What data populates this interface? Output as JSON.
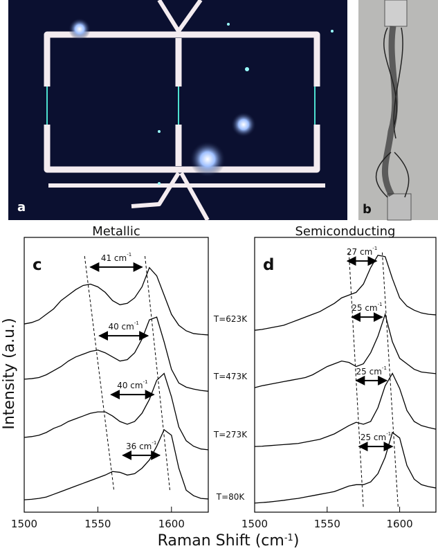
{
  "images": [
    {
      "label": "a"
    },
    {
      "label": "b"
    }
  ],
  "chart_data": [
    {
      "type": "line",
      "title": "Metallic",
      "panel_label": "c",
      "ylabel": "Intensity (a.u.)",
      "xlabel": {
        "text": "Raman Shift (cm",
        "sup": "-1",
        "tail": ")"
      },
      "xlim": [
        1500,
        1625
      ],
      "xticks": [
        1500,
        1550,
        1600
      ],
      "ylim": [
        0,
        100
      ],
      "x": [
        1500,
        1505,
        1510,
        1515,
        1520,
        1525,
        1530,
        1535,
        1540,
        1545,
        1550,
        1555,
        1560,
        1565,
        1570,
        1575,
        1580,
        1585,
        1590,
        1595,
        1600,
        1605,
        1610,
        1615,
        1620,
        1625
      ],
      "series": [
        {
          "name": "T=623K",
          "color": "#000000",
          "values": [
            68.5,
            69,
            70,
            72,
            74,
            77,
            79,
            81,
            82.5,
            83,
            82,
            80,
            77,
            75.5,
            76,
            78,
            82,
            89,
            86,
            79,
            72,
            68,
            66,
            65,
            64.7,
            64.5
          ]
        },
        {
          "name": "T=473K",
          "color": "#000000",
          "values": [
            48.4,
            48.6,
            49,
            50,
            51.5,
            53,
            55,
            56.5,
            57.5,
            58.5,
            59,
            58,
            56.5,
            55,
            55.5,
            58,
            63,
            70,
            71,
            62,
            52,
            47,
            45.5,
            44.8,
            44.3,
            44
          ]
        },
        {
          "name": "T=273K",
          "color": "#000000",
          "values": [
            27.2,
            27.5,
            28,
            29,
            30.5,
            31.5,
            33,
            34,
            35,
            36,
            36.5,
            36.5,
            35,
            33,
            32,
            33,
            36,
            41,
            48,
            50.5,
            42,
            31,
            26,
            24,
            23,
            22.7
          ]
        },
        {
          "name": "T=80K",
          "color": "#000000",
          "values": [
            4.5,
            4.7,
            5,
            5.5,
            6.5,
            7.5,
            8.5,
            9.5,
            10.5,
            11.5,
            12.5,
            13.5,
            14.8,
            14.5,
            13.5,
            14,
            16,
            19,
            24,
            30,
            28,
            16,
            8,
            6,
            5,
            4.8
          ]
        }
      ],
      "guides": [
        {
          "x": [
            1541,
            1561
          ],
          "y": [
            93.2,
            7.6
          ]
        },
        {
          "x": [
            1582,
            1599
          ],
          "y": [
            93.2,
            7.6
          ]
        }
      ],
      "annotations": [
        {
          "text": "41 cm",
          "sup": "-1",
          "x": [
            1545,
            1580
          ],
          "y": [
            89.2,
            89.2
          ]
        },
        {
          "text": "40 cm",
          "sup": "-1",
          "x": [
            1551,
            1584
          ],
          "y": [
            64.2,
            64.2
          ]
        },
        {
          "text": "40 cm",
          "sup": "-1",
          "x": [
            1559,
            1588
          ],
          "y": [
            42.8,
            42.8
          ]
        },
        {
          "text": "36 cm",
          "sup": "-1",
          "x": [
            1567,
            1592
          ],
          "y": [
            20.7,
            20.7
          ]
        }
      ]
    },
    {
      "type": "line",
      "title": "Semiconducting",
      "panel_label": "d",
      "xlim": [
        1500,
        1625
      ],
      "xticks": [
        1500,
        1550,
        1600
      ],
      "ylim": [
        0,
        100
      ],
      "x": [
        1500,
        1505,
        1510,
        1515,
        1520,
        1525,
        1530,
        1535,
        1540,
        1545,
        1550,
        1555,
        1560,
        1565,
        1570,
        1575,
        1580,
        1585,
        1590,
        1595,
        1600,
        1605,
        1610,
        1615,
        1620,
        1625
      ],
      "series": [
        {
          "color": "#000000",
          "values": [
            66.2,
            66.5,
            67,
            67.5,
            68,
            69,
            70,
            71,
            72,
            73,
            74.5,
            76,
            78,
            79,
            80,
            83,
            89,
            93.5,
            93,
            85,
            78,
            75,
            73.5,
            72.5,
            72,
            71.8
          ]
        },
        {
          "color": "#000000",
          "values": [
            45.3,
            46,
            46.5,
            47,
            47.5,
            48,
            48.5,
            49,
            50,
            51.5,
            53,
            54,
            55,
            54.5,
            53,
            54,
            58,
            64,
            72,
            62,
            56,
            54,
            52,
            51,
            50.7,
            50.4
          ]
        },
        {
          "color": "#000000",
          "values": [
            23.9,
            24,
            24.2,
            24.4,
            24.6,
            24.8,
            25,
            25.5,
            26,
            26.5,
            27.5,
            28.5,
            30,
            31.5,
            32.7,
            32,
            33,
            38,
            46,
            50.5,
            45,
            37,
            33,
            31.5,
            30.8,
            30.2
          ]
        },
        {
          "color": "#000000",
          "values": [
            3.3,
            3.5,
            3.7,
            4,
            4.3,
            4.7,
            5,
            5.5,
            6,
            6.5,
            7,
            7.5,
            8.5,
            9.5,
            10,
            10,
            11,
            14,
            20,
            29,
            27,
            17,
            12,
            10,
            9.3,
            8.8
          ]
        }
      ],
      "guides": [
        {
          "x": [
            1565,
            1575
          ],
          "y": [
            94.5,
            1.3
          ]
        },
        {
          "x": [
            1588,
            1599
          ],
          "y": [
            94.5,
            1.3
          ]
        }
      ],
      "annotations": [
        {
          "text": "27 cm",
          "sup": "-1",
          "x": [
            1564,
            1584
          ],
          "y": [
            91.4,
            91.4
          ]
        },
        {
          "text": "25 cm",
          "sup": "-1",
          "x": [
            1567,
            1588
          ],
          "y": [
            71,
            71
          ]
        },
        {
          "text": "25 cm",
          "sup": "-1",
          "x": [
            1570,
            1591
          ],
          "y": [
            47.9,
            47.9
          ]
        },
        {
          "text": "25 cm",
          "sup": "-1",
          "x": [
            1572,
            1595
          ],
          "y": [
            23.9,
            23.9
          ]
        }
      ]
    }
  ]
}
